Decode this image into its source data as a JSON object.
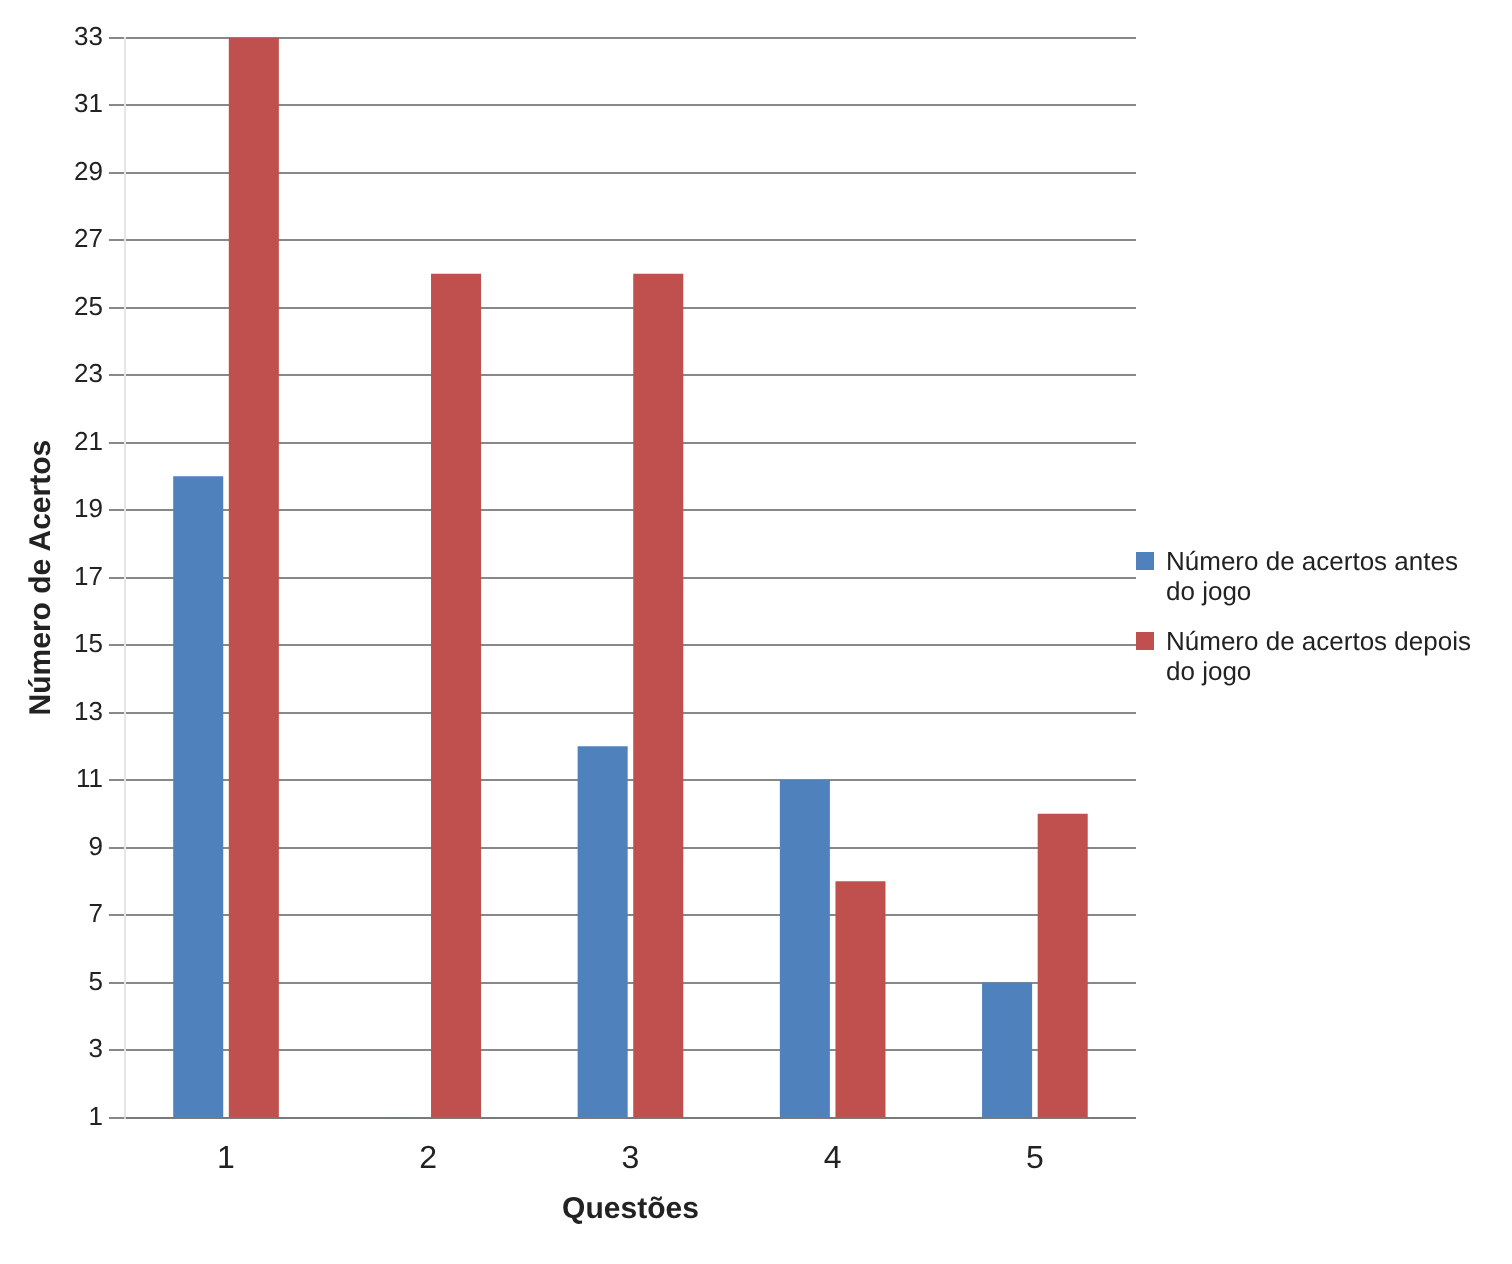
{
  "chart_data": {
    "type": "bar",
    "xlabel": "Questões",
    "ylabel": "Número de Acertos",
    "categories": [
      "1",
      "2",
      "3",
      "4",
      "5"
    ],
    "series": [
      {
        "name": "Número de acertos antes do jogo",
        "color": "#4f81bd",
        "values": [
          20,
          1,
          12,
          11,
          5
        ]
      },
      {
        "name": "Número de acertos depois do jogo",
        "color": "#c0504d",
        "values": [
          33,
          26,
          26,
          8,
          10
        ]
      }
    ],
    "ylim": [
      1,
      33
    ],
    "yticks": [
      1,
      3,
      5,
      7,
      9,
      11,
      13,
      15,
      17,
      19,
      21,
      23,
      25,
      27,
      29,
      31,
      33
    ],
    "grid": "y",
    "legend": "right"
  }
}
